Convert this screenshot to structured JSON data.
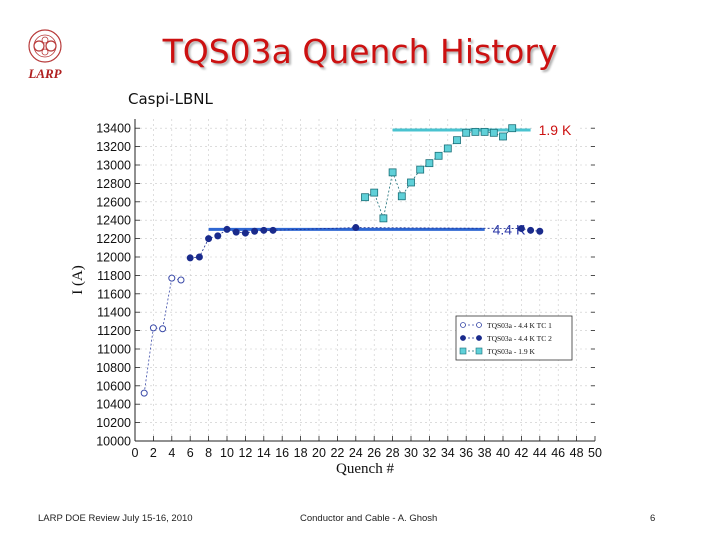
{
  "header": {
    "logo_text": "LARP",
    "title": "TQS03a Quench History",
    "subtitle": "Caspi-LBNL"
  },
  "footer": {
    "left": "LARP DOE Review July 15-16, 2010",
    "center": "Conductor and Cable - A. Ghosh",
    "right": "6"
  },
  "colors": {
    "title": "#cc1111",
    "series_tc1": "#3a4aa8",
    "series_tc2": "#1a2b8c",
    "series_19k": "#5fd0d8",
    "ref_19k": "#49c3d0",
    "ref_44k": "#2f67d2"
  },
  "chart_data": {
    "type": "scatter",
    "xlabel": "Quench #",
    "ylabel": "I (A)",
    "xlim": [
      0,
      50
    ],
    "ylim": [
      10000,
      13500
    ],
    "xticks": [
      0,
      2,
      4,
      6,
      8,
      10,
      12,
      14,
      16,
      18,
      20,
      22,
      24,
      26,
      28,
      30,
      32,
      34,
      36,
      38,
      40,
      42,
      44,
      46,
      48,
      50
    ],
    "yticks": [
      10000,
      10200,
      10400,
      10600,
      10800,
      11000,
      11200,
      11400,
      11600,
      11800,
      12000,
      12200,
      12400,
      12600,
      12800,
      13000,
      13200,
      13400
    ],
    "legend_position": "lower-right",
    "series": [
      {
        "name": "TQS03a - 4.4 K TC 1",
        "marker": "open-circle",
        "points": [
          [
            1,
            10520
          ],
          [
            2,
            11230
          ],
          [
            3,
            11220
          ],
          [
            4,
            11770
          ],
          [
            5,
            11750
          ]
        ]
      },
      {
        "name": "TQS03a - 4.4 K TC 2",
        "marker": "filled-circle",
        "points": [
          [
            6,
            11990
          ],
          [
            7,
            12000
          ],
          [
            8,
            12200
          ],
          [
            9,
            12230
          ],
          [
            10,
            12300
          ],
          [
            11,
            12270
          ],
          [
            12,
            12260
          ],
          [
            13,
            12280
          ],
          [
            14,
            12290
          ],
          [
            15,
            12290
          ],
          [
            24,
            12320
          ],
          [
            42,
            12310
          ],
          [
            43,
            12290
          ],
          [
            44,
            12280
          ]
        ]
      },
      {
        "name": "TQS03a - 1.9 K",
        "marker": "square",
        "points": [
          [
            25,
            12650
          ],
          [
            26,
            12700
          ],
          [
            27,
            12420
          ],
          [
            28,
            12920
          ],
          [
            29,
            12660
          ],
          [
            30,
            12810
          ],
          [
            31,
            12950
          ],
          [
            32,
            13020
          ],
          [
            33,
            13100
          ],
          [
            34,
            13180
          ],
          [
            35,
            13270
          ],
          [
            36,
            13350
          ],
          [
            37,
            13360
          ],
          [
            38,
            13360
          ],
          [
            39,
            13350
          ],
          [
            40,
            13310
          ],
          [
            41,
            13400
          ]
        ]
      }
    ],
    "annotations": [
      {
        "text": "1.9 K",
        "level": 13380,
        "x_from": 28,
        "x_to": 43
      },
      {
        "text": "4.4 K",
        "level": 12300,
        "x_from": 8,
        "x_to": 38
      }
    ]
  }
}
